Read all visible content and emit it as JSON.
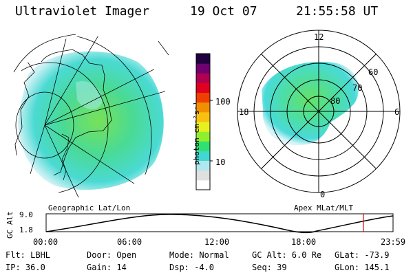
{
  "header": {
    "instrument": "Ultraviolet Imager",
    "date": "19 Oct 07",
    "time": "21:55:58 UT"
  },
  "colorbar": {
    "unit_label": "photon cm⁻²s⁻¹",
    "ticks": [
      {
        "label": "100",
        "value": 100
      },
      {
        "label": "10",
        "value": 10
      }
    ],
    "colors": [
      "#ffffff",
      "#e0e0e0",
      "#b0e8f0",
      "#40d8d0",
      "#30e070",
      "#90ee30",
      "#e8f020",
      "#f8c010",
      "#f09000",
      "#f04000",
      "#e00020",
      "#b00050",
      "#700070",
      "#200040"
    ]
  },
  "left_panel": {
    "caption": "Geographic Lat/Lon"
  },
  "right_panel": {
    "caption": "Apex MLat/MLT",
    "mlt_labels": [
      "12",
      "18",
      "6",
      "0"
    ],
    "mlat_labels": [
      "60",
      "70",
      "80"
    ]
  },
  "altitude_plot": {
    "ylabel": "GC Alt",
    "yticks": [
      "9.0",
      "1.8"
    ],
    "xticks": [
      "00:00",
      "06:00",
      "12:00",
      "18:00",
      "23:59"
    ],
    "current_time_marker": "21:55:58",
    "marker_color": "#cc0000"
  },
  "info": {
    "flt": "Flt: LBHL",
    "ip": "IP: 36.0",
    "door": "Door: Open",
    "gain": "Gain: 14",
    "mode": "Mode: Normal",
    "dsp": "Dsp:    -4.0",
    "gcalt": "GC Alt: 6.0 Re",
    "seq": "Seq: 39",
    "glat": "GLat: -73.9",
    "glon": "GLon: 145.1"
  }
}
